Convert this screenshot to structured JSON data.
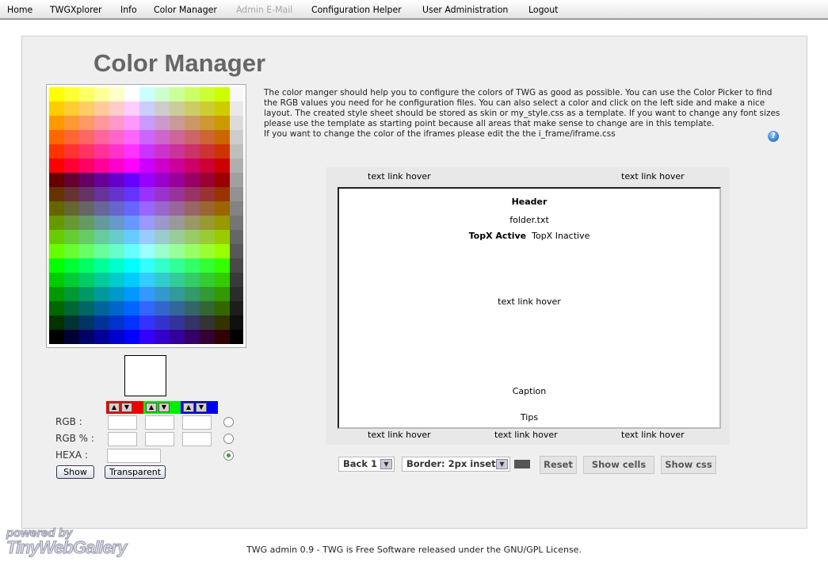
{
  "nav": {
    "items": [
      {
        "label": "Home",
        "disabled": false
      },
      {
        "label": "TWGXplorer",
        "disabled": false
      },
      {
        "label": "Info",
        "disabled": false
      },
      {
        "label": "Color Manager",
        "disabled": false
      },
      {
        "label": "Admin E-Mail",
        "disabled": true
      },
      {
        "label": "Configuration Helper",
        "disabled": false
      },
      {
        "label": "User Administration",
        "disabled": false
      },
      {
        "label": "Logout",
        "disabled": false
      }
    ]
  },
  "page": {
    "title": "Color Manager"
  },
  "description": {
    "paragraph": "The color manger should help you to configure the colors of TWG as good as possible. You can use the Color Picker to find the RGB values you need for he configuration files. You can also select a color and click on the left side and make a nice layout. The created style sheet should be stored as skin or my_style.css as a template. If you want to change any font sizes please use the template as starting point because all areas that make sense to change are in this template.",
    "iframe_note": "If you want to change the color of the iframes please edit the the i_frame/iframe.css",
    "help_icon": "help-icon"
  },
  "picker": {
    "channel_colors": {
      "red": "#ee0000",
      "green": "#00ee00",
      "blue": "#0000ee"
    },
    "up_glyph": "▲",
    "down_glyph": "▼",
    "rgb_label": "RGB :",
    "rgb_percent_label": "RGB % :",
    "hexa_label": "HEXA :",
    "rgb_values": [
      "",
      "",
      ""
    ],
    "rgb_percent_values": [
      "",
      "",
      ""
    ],
    "hexa_value": "",
    "selected_mode": "hexa",
    "show_button": "Show",
    "transparent_button": "Transparent",
    "swatch_color": "#ffffff"
  },
  "preview": {
    "top_links": [
      "text link hover",
      "text link hover"
    ],
    "header": "Header",
    "folder": "folder.txt",
    "topx_active": "TopX Active",
    "topx_inactive": "TopX Inactive",
    "middle_link": "text link hover",
    "caption": "Caption",
    "tips": "Tips",
    "bottom_links": [
      "text link hover",
      "text link hover",
      "text link hover"
    ]
  },
  "controls": {
    "back_select": "Back 1",
    "border_select": "Border: 2px inset",
    "border_color": "#555555",
    "reset": "Reset",
    "show_cells": "Show cells",
    "show_css": "Show css"
  },
  "footer": {
    "text": "TWG admin 0.9 - TWG is Free Software released under the GNU/GPL License."
  },
  "logo": {
    "line1": "powered by",
    "line2": "TinyWebGallery"
  }
}
